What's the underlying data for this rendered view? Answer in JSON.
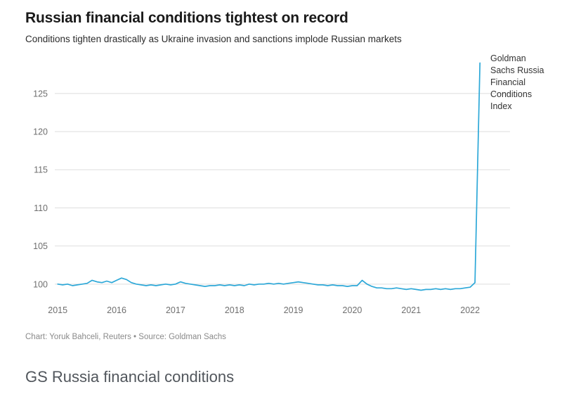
{
  "page": {
    "title": "Russian financial conditions tightest on record",
    "subtitle": "Conditions tighten drastically as Ukraine invasion and sanctions implode Russian markets",
    "caption": "Chart: Yoruk Bahceli, Reuters • Source: Goldman Sachs",
    "section_below_heading": "GS Russia financial conditions"
  },
  "chart_data": {
    "type": "line",
    "title": "Russian financial conditions tightest on record",
    "subtitle": "Conditions tighten drastically as Ukraine invasion and sanctions implode Russian markets",
    "annotation": "Goldman Sachs Russia Financial Conditions Index",
    "series": [
      {
        "name": "Goldman Sachs Russia Financial Conditions Index",
        "x": [
          2015.0,
          2015.083,
          2015.167,
          2015.25,
          2015.333,
          2015.417,
          2015.5,
          2015.583,
          2015.667,
          2015.75,
          2015.833,
          2015.917,
          2016.0,
          2016.083,
          2016.167,
          2016.25,
          2016.333,
          2016.417,
          2016.5,
          2016.583,
          2016.667,
          2016.75,
          2016.833,
          2016.917,
          2017.0,
          2017.083,
          2017.167,
          2017.25,
          2017.333,
          2017.417,
          2017.5,
          2017.583,
          2017.667,
          2017.75,
          2017.833,
          2017.917,
          2018.0,
          2018.083,
          2018.167,
          2018.25,
          2018.333,
          2018.417,
          2018.5,
          2018.583,
          2018.667,
          2018.75,
          2018.833,
          2018.917,
          2019.0,
          2019.083,
          2019.167,
          2019.25,
          2019.333,
          2019.417,
          2019.5,
          2019.583,
          2019.667,
          2019.75,
          2019.833,
          2019.917,
          2020.0,
          2020.083,
          2020.167,
          2020.25,
          2020.333,
          2020.417,
          2020.5,
          2020.583,
          2020.667,
          2020.75,
          2020.833,
          2020.917,
          2021.0,
          2021.083,
          2021.167,
          2021.25,
          2021.333,
          2021.417,
          2021.5,
          2021.583,
          2021.667,
          2021.75,
          2021.833,
          2021.917,
          2022.0,
          2022.083,
          2022.167
        ],
        "values": [
          100.0,
          99.9,
          100.0,
          99.8,
          99.9,
          100.0,
          100.1,
          100.5,
          100.3,
          100.2,
          100.4,
          100.2,
          100.5,
          100.8,
          100.6,
          100.2,
          100.0,
          99.9,
          99.8,
          99.9,
          99.8,
          99.9,
          100.0,
          99.9,
          100.0,
          100.3,
          100.1,
          100.0,
          99.9,
          99.8,
          99.7,
          99.8,
          99.8,
          99.9,
          99.8,
          99.9,
          99.8,
          99.9,
          99.8,
          100.0,
          99.9,
          100.0,
          100.0,
          100.1,
          100.0,
          100.1,
          100.0,
          100.1,
          100.2,
          100.3,
          100.2,
          100.1,
          100.0,
          99.9,
          99.9,
          99.8,
          99.9,
          99.8,
          99.8,
          99.7,
          99.8,
          99.8,
          100.5,
          100.0,
          99.7,
          99.5,
          99.5,
          99.4,
          99.4,
          99.5,
          99.4,
          99.3,
          99.4,
          99.3,
          99.2,
          99.3,
          99.3,
          99.4,
          99.3,
          99.4,
          99.3,
          99.4,
          99.4,
          99.5,
          99.6,
          100.2,
          129.0
        ]
      }
    ],
    "x_ticks": [
      2015,
      2016,
      2017,
      2018,
      2019,
      2020,
      2021,
      2022
    ],
    "y_ticks": [
      100,
      105,
      110,
      115,
      120,
      125
    ],
    "xlim": [
      2014.95,
      2022.32
    ],
    "ylim": [
      98.6,
      129.6
    ],
    "line_color": "#2da8d8",
    "grid_color": "#dedede",
    "axis_label_color": "#6f6f6f",
    "grid": "horizontal-only",
    "legend": "none-annotation-at-line-end"
  }
}
